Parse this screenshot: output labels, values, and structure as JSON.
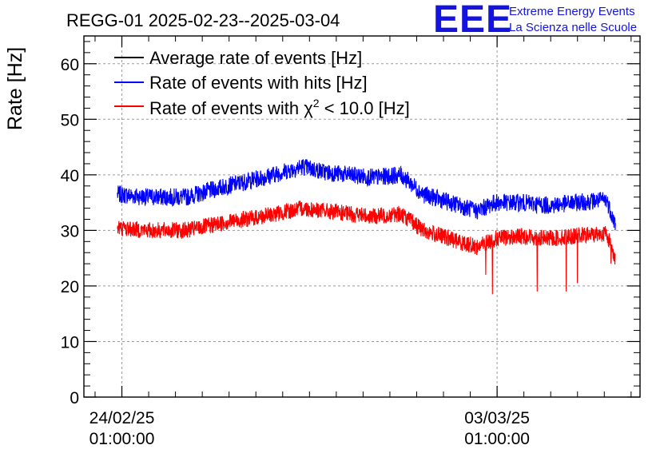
{
  "chart_data": {
    "type": "line",
    "title": "REGG-01 2025-02-23--2025-03-04",
    "xlabel": "",
    "ylabel": "Rate [Hz]",
    "xlim": [
      "2025-02-23 08:00",
      "2025-03-05 17:00"
    ],
    "ylim": [
      0,
      65
    ],
    "yticks": [
      0,
      10,
      20,
      30,
      40,
      50,
      60
    ],
    "xticks": [
      {
        "at": "2025-02-24 01:00",
        "line1": "24/02/25",
        "line2": "01:00:00"
      },
      {
        "at": "2025-03-03 01:00",
        "line1": "03/03/25",
        "line2": "01:00:00"
      }
    ],
    "grid": true,
    "legend_position": "top-left",
    "series": [
      {
        "name": "Average rate of events [Hz]",
        "color": "#000000",
        "x": [],
        "y": []
      },
      {
        "name": "Rate of events with hits [Hz]",
        "color": "#0000ff",
        "x": [
          "2025-02-23 23:00",
          "2025-02-24 12:00",
          "2025-02-25 06:00",
          "2025-02-26 00:00",
          "2025-02-26 16:00",
          "2025-02-27 10:00",
          "2025-02-27 20:00",
          "2025-02-28 06:00",
          "2025-02-28 18:00",
          "2025-03-01 06:00",
          "2025-03-01 16:00",
          "2025-03-02 00:00",
          "2025-03-02 08:00",
          "2025-03-02 16:00",
          "2025-03-03 00:00",
          "2025-03-03 12:00",
          "2025-03-04 00:00",
          "2025-03-04 12:00",
          "2025-03-05 02:00",
          "2025-03-05 06:00"
        ],
        "y": [
          36.5,
          36,
          36,
          38,
          39.5,
          41.5,
          40.5,
          40,
          39.5,
          40,
          36.5,
          35.5,
          34.5,
          33.5,
          35,
          35,
          34.5,
          35,
          35.5,
          31
        ],
        "noise": 1.6
      },
      {
        "name": "Rate of events with χ² < 10.0 [Hz]",
        "color": "#ff0000",
        "x": [
          "2025-02-23 23:00",
          "2025-02-24 12:00",
          "2025-02-25 06:00",
          "2025-02-26 00:00",
          "2025-02-26 16:00",
          "2025-02-27 10:00",
          "2025-02-27 20:00",
          "2025-02-28 06:00",
          "2025-02-28 18:00",
          "2025-03-01 06:00",
          "2025-03-01 16:00",
          "2025-03-02 00:00",
          "2025-03-02 08:00",
          "2025-03-02 16:00",
          "2025-03-03 00:00",
          "2025-03-03 12:00",
          "2025-03-04 00:00",
          "2025-03-04 12:00",
          "2025-03-05 02:00",
          "2025-03-05 06:00"
        ],
        "y": [
          30.5,
          30,
          30,
          31.5,
          32.5,
          34,
          33.5,
          33,
          32.5,
          33,
          30,
          29,
          28,
          27,
          28.5,
          29,
          28.5,
          29,
          29.5,
          25
        ],
        "noise": 1.5,
        "dips": [
          {
            "x": "2025-03-02 20:00",
            "y": 22
          },
          {
            "x": "2025-03-02 23:00",
            "y": 18.5
          },
          {
            "x": "2025-03-03 19:00",
            "y": 19
          },
          {
            "x": "2025-03-04 08:00",
            "y": 19
          },
          {
            "x": "2025-03-04 13:00",
            "y": 20.5
          },
          {
            "x": "2025-03-05 04:00",
            "y": 24
          }
        ]
      }
    ]
  },
  "legend": {
    "avg": "Average rate of events [Hz]",
    "hits": "Rate of events with hits [Hz]",
    "chi_prefix": "Rate of events with ",
    "chi_symbol": "χ",
    "chi_sup": "2",
    "chi_suffix": " < 10.0 [Hz]"
  },
  "branding": {
    "logo": "EEE",
    "line1": "Extreme Energy Events",
    "line2": "La Scienza nelle Scuole",
    "color": "#1414e0"
  }
}
